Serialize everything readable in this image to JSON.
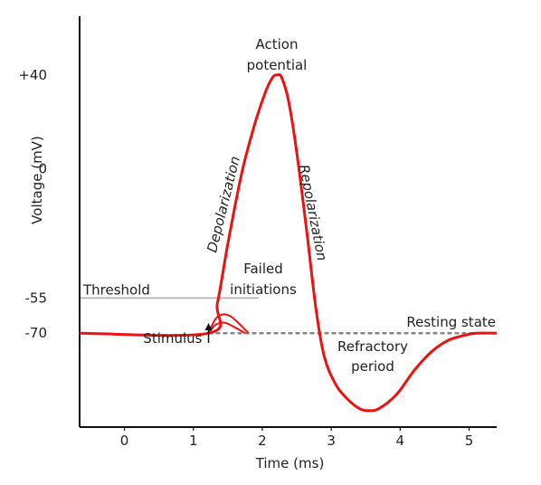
{
  "chart_data": {
    "type": "line",
    "title": "",
    "xlabel": "Time (ms)",
    "ylabel": "Voltage (mV)",
    "xlim": [
      -0.65,
      5.4
    ],
    "ylim": [
      -110,
      65
    ],
    "x_ticks": [
      "0",
      "1",
      "2",
      "3",
      "4",
      "5"
    ],
    "y_ticks": [
      "+40",
      "0",
      "-55",
      "-70"
    ],
    "grid": false,
    "colors": {
      "trace": "#ee1111",
      "threshold": "#aaaaaa",
      "resting": "#888888",
      "axis": "#111111"
    },
    "threshold": {
      "label": "Threshold",
      "y": -55
    },
    "resting": {
      "label": "Resting state",
      "y": -70
    },
    "series": [
      {
        "name": "",
        "points": [
          [
            -0.65,
            -70
          ],
          [
            1.22,
            -70
          ],
          [
            1.35,
            -57
          ],
          [
            1.5,
            -32
          ],
          [
            1.7,
            -2
          ],
          [
            1.9,
            20
          ],
          [
            2.05,
            33
          ],
          [
            2.15,
            39
          ],
          [
            2.22,
            40
          ],
          [
            2.28,
            39
          ],
          [
            2.38,
            29
          ],
          [
            2.5,
            7
          ],
          [
            2.65,
            -28
          ],
          [
            2.78,
            -60
          ],
          [
            2.9,
            -80
          ],
          [
            3.05,
            -91
          ],
          [
            3.2,
            -97
          ],
          [
            3.4,
            -102
          ],
          [
            3.55,
            -103
          ],
          [
            3.7,
            -102
          ],
          [
            3.95,
            -96
          ],
          [
            4.2,
            -86
          ],
          [
            4.45,
            -78
          ],
          [
            4.7,
            -73
          ],
          [
            4.95,
            -70.8
          ],
          [
            5.1,
            -70
          ],
          [
            5.4,
            -70
          ]
        ]
      }
    ],
    "failed_initiations": [
      [
        [
          1.22,
          -70
        ],
        [
          1.32,
          -64
        ],
        [
          1.43,
          -62
        ],
        [
          1.55,
          -63
        ],
        [
          1.7,
          -67
        ],
        [
          1.8,
          -70
        ]
      ],
      [
        [
          1.22,
          -70
        ],
        [
          1.32,
          -66.5
        ],
        [
          1.45,
          -65.5
        ],
        [
          1.6,
          -67.5
        ],
        [
          1.75,
          -70
        ]
      ]
    ],
    "annotations": {
      "action_potential": [
        "Action",
        "potential"
      ],
      "depolarization": "Depolarization",
      "repolarization": "Repolarization",
      "failed": [
        "Failed",
        "initiations"
      ],
      "stimulus": "Stimulus",
      "refractory": [
        "Refractory",
        "period"
      ]
    }
  }
}
